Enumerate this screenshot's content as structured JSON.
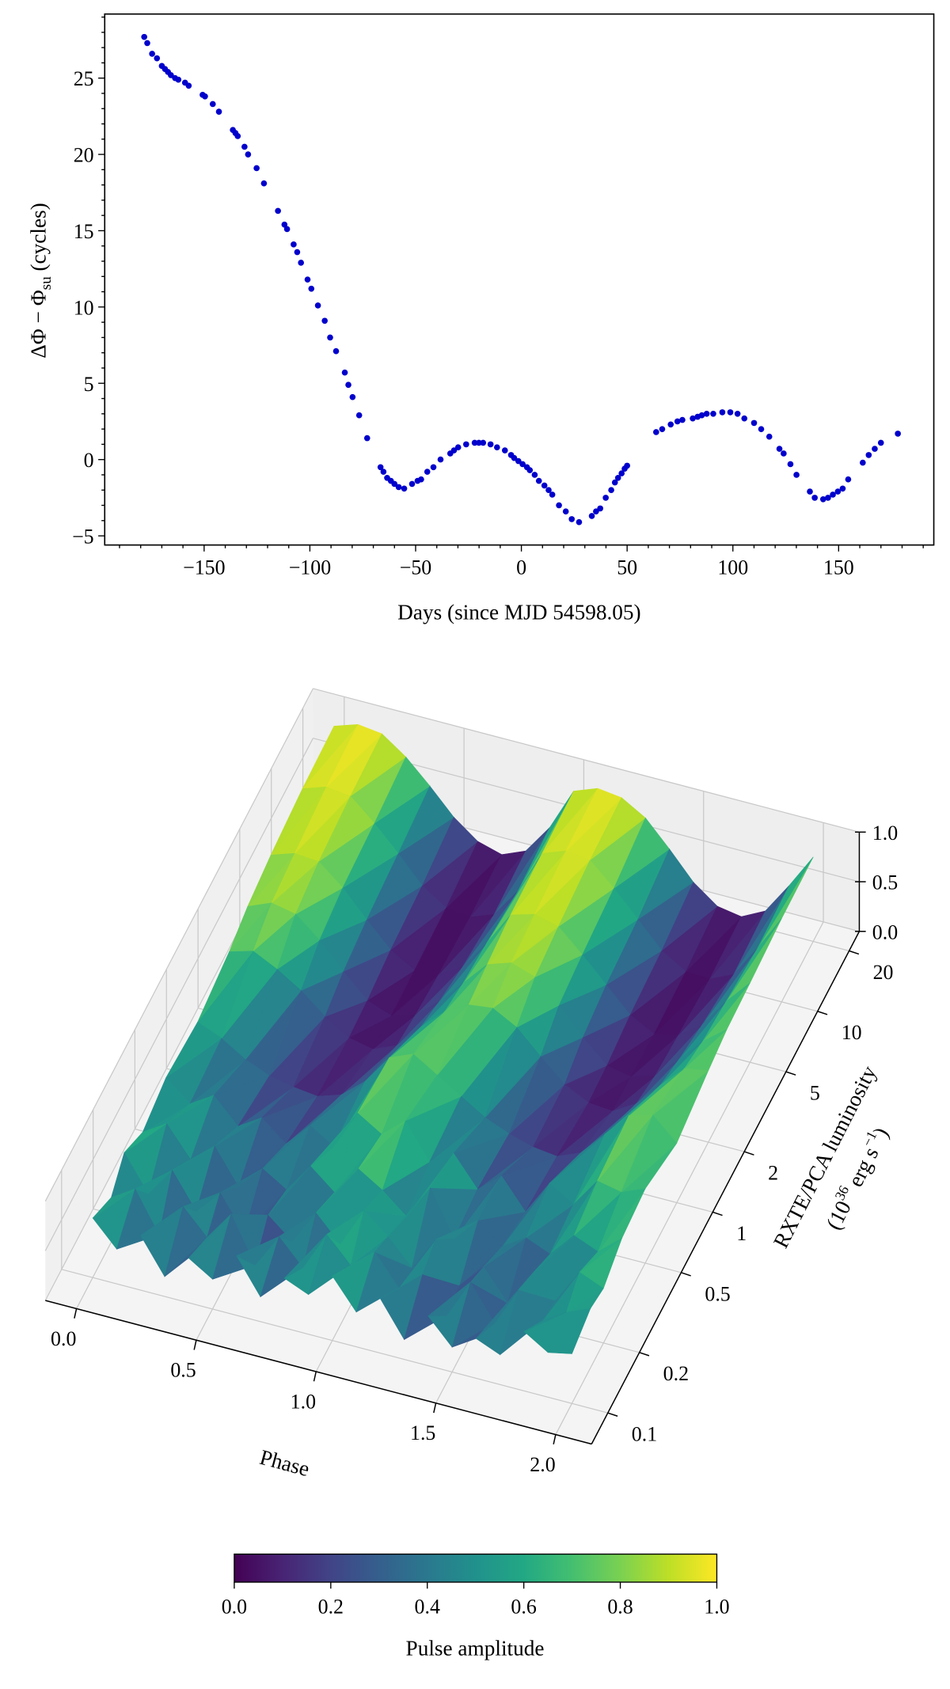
{
  "chart_data": [
    {
      "type": "scatter",
      "xlabel": "Days (since MJD 54598.05)",
      "ylabel": {
        "main": "ΔΦ − Φ",
        "sub": "su",
        "unit": " (cycles)"
      },
      "xlim": [
        -197,
        195
      ],
      "ylim": [
        -5.6,
        29.2
      ],
      "xticks": [
        -150,
        -100,
        -50,
        0,
        50,
        100,
        150
      ],
      "xtick_labels": [
        "−150",
        "−100",
        "−50",
        "0",
        "50",
        "100",
        "150"
      ],
      "yticks": [
        -5,
        0,
        5,
        10,
        15,
        20,
        25
      ],
      "ytick_labels": [
        "−5",
        "0",
        "5",
        "10",
        "15",
        "20",
        "25"
      ],
      "marker_color": "#0000cc",
      "grid": false,
      "points": [
        [
          -178.3,
          27.7
        ],
        [
          -176.9,
          27.3
        ],
        [
          -174.6,
          26.6
        ],
        [
          -172.3,
          26.3
        ],
        [
          -170,
          25.8
        ],
        [
          -168.5,
          25.6
        ],
        [
          -167.1,
          25.4
        ],
        [
          -165.7,
          25.2
        ],
        [
          -163.7,
          25.0
        ],
        [
          -162.2,
          24.9
        ],
        [
          -159,
          24.7
        ],
        [
          -157.3,
          24.5
        ],
        [
          -150.7,
          23.9
        ],
        [
          -149.6,
          23.8
        ],
        [
          -145.9,
          23.3
        ],
        [
          -143,
          22.8
        ],
        [
          -136.4,
          21.6
        ],
        [
          -135.2,
          21.4
        ],
        [
          -134.1,
          21.2
        ],
        [
          -130.9,
          20.5
        ],
        [
          -129.2,
          20.0
        ],
        [
          -125.2,
          19.1
        ],
        [
          -121.7,
          18.1
        ],
        [
          -115.1,
          16.3
        ],
        [
          -112,
          15.4
        ],
        [
          -110.8,
          15.1
        ],
        [
          -107.7,
          14.1
        ],
        [
          -106,
          13.6
        ],
        [
          -104.2,
          12.9
        ],
        [
          -101.1,
          11.8
        ],
        [
          -99.3,
          11.2
        ],
        [
          -96.2,
          10.1
        ],
        [
          -93,
          9.1
        ],
        [
          -90.4,
          8.0
        ],
        [
          -87.6,
          7.1
        ],
        [
          -83.5,
          5.7
        ],
        [
          -81.8,
          4.9
        ],
        [
          -79.8,
          4.1
        ],
        [
          -76.7,
          2.9
        ],
        [
          -72.9,
          1.4
        ],
        [
          -66.6,
          -0.5
        ],
        [
          -65.2,
          -0.8
        ],
        [
          -63.5,
          -1.2
        ],
        [
          -61.7,
          -1.4
        ],
        [
          -60,
          -1.6
        ],
        [
          -58,
          -1.8
        ],
        [
          -55.4,
          -1.9
        ],
        [
          -51.7,
          -1.6
        ],
        [
          -49.1,
          -1.4
        ],
        [
          -47.4,
          -1.3
        ],
        [
          -44.5,
          -0.8
        ],
        [
          -41.6,
          -0.5
        ],
        [
          -38.2,
          0
        ],
        [
          -33.6,
          0.4
        ],
        [
          -31.9,
          0.6
        ],
        [
          -29.9,
          0.8
        ],
        [
          -26.1,
          1.0
        ],
        [
          -22.1,
          1.1
        ],
        [
          -20.1,
          1.1
        ],
        [
          -18.1,
          1.1
        ],
        [
          -14.6,
          1.0
        ],
        [
          -11.5,
          0.8
        ],
        [
          -7.8,
          0.6
        ],
        [
          -4.9,
          0.3
        ],
        [
          -3.4,
          0.1
        ],
        [
          -1.4,
          -0.1
        ],
        [
          0.6,
          -0.3
        ],
        [
          2.6,
          -0.5
        ],
        [
          4,
          -0.7
        ],
        [
          6.3,
          -1.0
        ],
        [
          8.3,
          -1.4
        ],
        [
          10.9,
          -1.7
        ],
        [
          12.9,
          -2.0
        ],
        [
          14.6,
          -2.3
        ],
        [
          17.8,
          -3.0
        ],
        [
          21,
          -3.4
        ],
        [
          23.8,
          -3.9
        ],
        [
          27.3,
          -4.1
        ],
        [
          33.3,
          -3.7
        ],
        [
          35.3,
          -3.4
        ],
        [
          37.3,
          -3.2
        ],
        [
          39.9,
          -2.5
        ],
        [
          42.5,
          -2.0
        ],
        [
          44.2,
          -1.5
        ],
        [
          45.7,
          -1.2
        ],
        [
          47.4,
          -0.9
        ],
        [
          48.8,
          -0.6
        ],
        [
          50,
          -0.4
        ],
        [
          63.7,
          1.8
        ],
        [
          66.6,
          2.0
        ],
        [
          70.6,
          2.3
        ],
        [
          73.8,
          2.5
        ],
        [
          76.1,
          2.6
        ],
        [
          81,
          2.7
        ],
        [
          83.3,
          2.8
        ],
        [
          85.3,
          2.9
        ],
        [
          87.6,
          3.0
        ],
        [
          90.7,
          3.0
        ],
        [
          95,
          3.1
        ],
        [
          98.8,
          3.1
        ],
        [
          102.2,
          3.0
        ],
        [
          105.4,
          2.7
        ],
        [
          110,
          2.4
        ],
        [
          113.4,
          2.0
        ],
        [
          117.2,
          1.5
        ],
        [
          122,
          0.7
        ],
        [
          124,
          0.4
        ],
        [
          127.2,
          -0.3
        ],
        [
          130.1,
          -1.0
        ],
        [
          136.4,
          -2.1
        ],
        [
          138.7,
          -2.5
        ],
        [
          142.7,
          -2.6
        ],
        [
          145,
          -2.5
        ],
        [
          147.3,
          -2.3
        ],
        [
          149.6,
          -2.1
        ],
        [
          151.9,
          -1.9
        ],
        [
          154.5,
          -1.3
        ],
        [
          161.4,
          -0.2
        ],
        [
          164.2,
          0.3
        ],
        [
          167.1,
          0.7
        ],
        [
          170,
          1.1
        ],
        [
          178,
          1.7
        ]
      ]
    },
    {
      "type": "surface3d",
      "colormap": "viridis",
      "xlabel": "Phase",
      "ylabel": {
        "main": "RXTE/PCA luminosity",
        "pre": "(10",
        "exp": "36",
        "mid": " erg s",
        "exp2": "−1",
        "post": ")"
      },
      "xlim": [
        -0.13,
        2.15
      ],
      "ylog": true,
      "ylim": [
        0.07,
        25
      ],
      "zlim": [
        0,
        1
      ],
      "xticks": [
        0.0,
        0.5,
        1.0,
        1.5,
        2.0
      ],
      "xtick_labels": [
        "0.0",
        "0.5",
        "1.0",
        "1.5",
        "2.0"
      ],
      "yticks": [
        0.1,
        0.2,
        0.5,
        1,
        2,
        5,
        10,
        20
      ],
      "ytick_labels": [
        "0.1",
        "0.2",
        "0.5",
        "1",
        "2",
        "5",
        "10",
        "20"
      ],
      "zticks": [
        0.0,
        0.5,
        1.0
      ],
      "ztick_labels": [
        "0.0",
        "0.5",
        "1.0"
      ],
      "phase": [
        0,
        0.1,
        0.2,
        0.3,
        0.4,
        0.5,
        0.6,
        0.7,
        0.8,
        0.9,
        1.0,
        1.1,
        1.2,
        1.3,
        1.4,
        1.5,
        1.6,
        1.7,
        1.8,
        1.9,
        2.0
      ],
      "luminosity": [
        0.1,
        0.15,
        0.2,
        0.3,
        0.5,
        1,
        2,
        3,
        5,
        10,
        20
      ],
      "amplitude": [
        [
          0.6,
          0.35,
          0.55,
          0.2,
          0.45,
          0.3,
          0.6,
          0.25,
          0.5,
          0.4,
          0.65,
          0.35,
          0.55,
          0.2,
          0.5,
          0.25,
          0.4,
          0.3,
          0.6,
          0.45,
          0.5
        ],
        [
          0.45,
          0.6,
          0.2,
          0.55,
          0.3,
          0.6,
          0.15,
          0.5,
          0.25,
          0.65,
          0.4,
          0.6,
          0.3,
          0.5,
          0.15,
          0.55,
          0.2,
          0.6,
          0.35,
          0.5,
          0.6
        ],
        [
          0.65,
          0.3,
          0.6,
          0.25,
          0.5,
          0.15,
          0.4,
          0.2,
          0.55,
          0.3,
          0.7,
          0.5,
          0.25,
          0.6,
          0.2,
          0.45,
          0.15,
          0.5,
          0.3,
          0.65,
          0.55
        ],
        [
          0.5,
          0.65,
          0.35,
          0.55,
          0.2,
          0.45,
          0.3,
          0.6,
          0.4,
          0.7,
          0.55,
          0.35,
          0.7,
          0.25,
          0.5,
          0.3,
          0.45,
          0.35,
          0.6,
          0.5,
          0.7
        ],
        [
          0.6,
          0.4,
          0.55,
          0.3,
          0.45,
          0.25,
          0.5,
          0.35,
          0.75,
          0.6,
          0.8,
          0.45,
          0.6,
          0.3,
          0.5,
          0.2,
          0.55,
          0.4,
          0.7,
          0.65,
          0.75
        ],
        [
          0.55,
          0.45,
          0.3,
          0.2,
          0.15,
          0.12,
          0.2,
          0.4,
          0.7,
          0.8,
          0.65,
          0.5,
          0.35,
          0.25,
          0.18,
          0.15,
          0.25,
          0.5,
          0.75,
          0.82,
          0.6
        ],
        [
          0.65,
          0.72,
          0.6,
          0.45,
          0.25,
          0.1,
          0.05,
          0.15,
          0.4,
          0.62,
          0.75,
          0.78,
          0.65,
          0.42,
          0.2,
          0.08,
          0.06,
          0.2,
          0.45,
          0.68,
          0.72
        ],
        [
          0.75,
          0.85,
          0.8,
          0.6,
          0.35,
          0.12,
          0.03,
          0.1,
          0.3,
          0.55,
          0.8,
          0.88,
          0.8,
          0.58,
          0.32,
          0.1,
          0.05,
          0.12,
          0.35,
          0.6,
          0.78
        ],
        [
          0.82,
          0.9,
          0.88,
          0.68,
          0.42,
          0.18,
          0.04,
          0.06,
          0.2,
          0.5,
          0.85,
          0.92,
          0.86,
          0.64,
          0.4,
          0.16,
          0.03,
          0.08,
          0.25,
          0.55,
          0.8
        ],
        [
          0.88,
          0.96,
          0.93,
          0.72,
          0.48,
          0.22,
          0.06,
          0.03,
          0.12,
          0.42,
          0.86,
          0.95,
          0.92,
          0.7,
          0.45,
          0.2,
          0.05,
          0.04,
          0.15,
          0.48,
          0.84
        ],
        [
          0.9,
          0.98,
          0.95,
          0.78,
          0.55,
          0.3,
          0.12,
          0.05,
          0.15,
          0.45,
          0.88,
          0.97,
          0.94,
          0.8,
          0.55,
          0.28,
          0.1,
          0.06,
          0.18,
          0.5,
          0.85
        ]
      ],
      "colorbar": {
        "label": "Pulse amplitude",
        "range": [
          0,
          1
        ],
        "ticks": [
          0,
          0.2,
          0.4,
          0.6,
          0.8,
          1.0
        ],
        "tick_labels": [
          "0.0",
          "0.2",
          "0.4",
          "0.6",
          "0.8",
          "1.0"
        ],
        "orientation": "horizontal"
      }
    }
  ]
}
